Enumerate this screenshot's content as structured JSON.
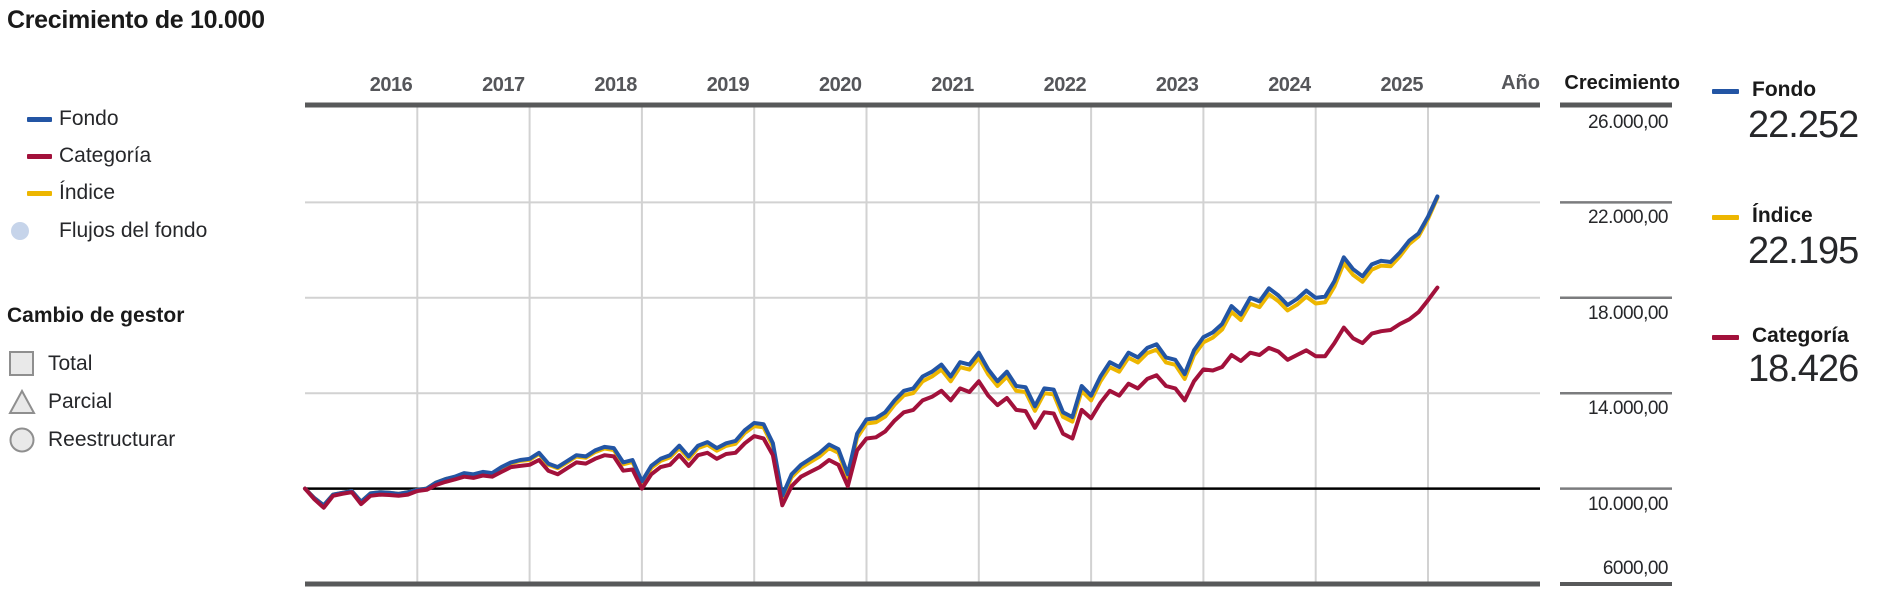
{
  "title": "Crecimiento de 10.000",
  "legend": {
    "items": [
      {
        "label": "Fondo",
        "color": "#2355A4",
        "swatch": "line"
      },
      {
        "label": "Categoría",
        "color": "#A2113B",
        "swatch": "line"
      },
      {
        "label": "Índice",
        "color": "#EDB600",
        "swatch": "line"
      },
      {
        "label": "Flujos del fondo",
        "color": "#C6D4EA",
        "swatch": "circle"
      }
    ]
  },
  "manager_change": {
    "heading": "Cambio de gestor",
    "items": [
      {
        "label": "Total",
        "shape": "square"
      },
      {
        "label": "Parcial",
        "shape": "triangle"
      },
      {
        "label": "Reestructurar",
        "shape": "circle"
      }
    ],
    "shape_fill": "#E9E9E9",
    "shape_stroke": "#8F8F8F"
  },
  "axis": {
    "x_corner_label": "Año",
    "y_corner_label": "Crecimiento",
    "years": [
      "2016",
      "2017",
      "2018",
      "2019",
      "2020",
      "2021",
      "2022",
      "2023",
      "2024",
      "2025"
    ],
    "y_ticks": [
      {
        "label": "26.000,00",
        "value": 26000
      },
      {
        "label": "22.000,00",
        "value": 22000
      },
      {
        "label": "18.000,00",
        "value": 18000
      },
      {
        "label": "14.000,00",
        "value": 14000
      },
      {
        "label": "10.000,00",
        "value": 10000
      },
      {
        "label": "6000,00",
        "value": 6000
      }
    ],
    "axis_color": "#58595A",
    "grid_color": "#D2D2D2",
    "tick_color": "#7B7C7E",
    "baseline_color": "#000000"
  },
  "summary": [
    {
      "label": "Fondo",
      "value": "22.252",
      "color": "#2355A4"
    },
    {
      "label": "Índice",
      "value": "22.195",
      "color": "#EDB600"
    },
    {
      "label": "Categoría",
      "value": "18.426",
      "color": "#A2113B"
    }
  ],
  "chart_data": {
    "type": "line",
    "title": "Crecimiento de 10.000",
    "x_start": "2016-01",
    "x_end": "2026-01",
    "interval": "monthly",
    "baseline": 10000,
    "ylim": [
      6000,
      26000
    ],
    "grid": true,
    "legend_position": "left",
    "series": [
      {
        "name": "Índice",
        "color": "#EDB600",
        "final": 22195,
        "values": [
          10000,
          9600,
          9300,
          9750,
          9820,
          9900,
          9450,
          9800,
          9850,
          9830,
          9780,
          9850,
          9950,
          10000,
          10250,
          10400,
          10480,
          10630,
          10580,
          10670,
          10620,
          10870,
          11060,
          11160,
          11200,
          11450,
          11000,
          10850,
          11090,
          11340,
          11290,
          11530,
          11680,
          11620,
          11020,
          11120,
          10220,
          10860,
          11160,
          11310,
          11700,
          11250,
          11700,
          11840,
          11590,
          11790,
          11880,
          12330,
          12620,
          12570,
          11770,
          9600,
          10480,
          10870,
          11110,
          11350,
          11700,
          11500,
          10450,
          12140,
          12730,
          12780,
          13020,
          13520,
          13910,
          14010,
          14500,
          14700,
          14990,
          14500,
          15090,
          14990,
          15480,
          14790,
          14300,
          14690,
          14100,
          14050,
          13260,
          14000,
          13950,
          13010,
          12810,
          14100,
          13700,
          14500,
          15090,
          14900,
          15490,
          15290,
          15680,
          15830,
          15290,
          15190,
          14600,
          15590,
          16130,
          16330,
          16670,
          17410,
          17070,
          17750,
          17610,
          18150,
          17860,
          17470,
          17710,
          18050,
          17760,
          17810,
          18470,
          19450,
          18960,
          18670,
          19180,
          19350,
          19320,
          19740,
          20260,
          20580,
          21310,
          22195
        ]
      },
      {
        "name": "Fondo",
        "color": "#2355A4",
        "final": 22252,
        "values": [
          10000,
          9600,
          9300,
          9750,
          9820,
          9900,
          9450,
          9800,
          9850,
          9830,
          9780,
          9850,
          9950,
          10000,
          10250,
          10400,
          10500,
          10650,
          10600,
          10700,
          10650,
          10900,
          11100,
          11200,
          11250,
          11500,
          11050,
          10900,
          11150,
          11400,
          11350,
          11600,
          11750,
          11700,
          11100,
          11200,
          10300,
          10950,
          11250,
          11400,
          11800,
          11350,
          11800,
          11950,
          11700,
          11900,
          12000,
          12450,
          12750,
          12700,
          11900,
          9700,
          10600,
          11000,
          11250,
          11500,
          11850,
          11650,
          10600,
          12300,
          12900,
          12950,
          13200,
          13700,
          14100,
          14200,
          14700,
          14900,
          15200,
          14700,
          15300,
          15200,
          15700,
          15000,
          14500,
          14900,
          14300,
          14250,
          13450,
          14200,
          14150,
          13200,
          13000,
          14300,
          13900,
          14700,
          15300,
          15100,
          15700,
          15500,
          15900,
          16050,
          15500,
          15400,
          14800,
          15800,
          16350,
          16550,
          16900,
          17650,
          17300,
          18000,
          17850,
          18400,
          18100,
          17700,
          17950,
          18300,
          18000,
          18050,
          18700,
          19700,
          19200,
          18900,
          19400,
          19550,
          19500,
          19900,
          20400,
          20700,
          21400,
          22252
        ]
      },
      {
        "name": "Categoría",
        "color": "#A2113B",
        "final": 18426,
        "values": [
          10000,
          9550,
          9200,
          9700,
          9780,
          9850,
          9350,
          9700,
          9750,
          9730,
          9700,
          9750,
          9900,
          9950,
          10150,
          10280,
          10380,
          10500,
          10450,
          10550,
          10500,
          10700,
          10900,
          10950,
          11000,
          11200,
          10750,
          10600,
          10850,
          11100,
          11050,
          11250,
          11400,
          11350,
          10750,
          10800,
          10000,
          10600,
          10900,
          11000,
          11400,
          10950,
          11400,
          11500,
          11250,
          11450,
          11500,
          11900,
          12200,
          12100,
          11400,
          9300,
          10100,
          10500,
          10700,
          10900,
          11200,
          11000,
          10100,
          11600,
          12100,
          12150,
          12400,
          12850,
          13200,
          13300,
          13700,
          13850,
          14100,
          13700,
          14200,
          14050,
          14500,
          13900,
          13500,
          13800,
          13300,
          13250,
          12550,
          13200,
          13150,
          12300,
          12100,
          13300,
          12950,
          13600,
          14100,
          13900,
          14400,
          14200,
          14600,
          14750,
          14300,
          14200,
          13700,
          14500,
          15000,
          14950,
          15100,
          15600,
          15350,
          15700,
          15600,
          15900,
          15750,
          15400,
          15600,
          15800,
          15550,
          15550,
          16100,
          16750,
          16300,
          16100,
          16500,
          16600,
          16650,
          16900,
          17100,
          17400,
          17900,
          18426
        ]
      }
    ]
  }
}
